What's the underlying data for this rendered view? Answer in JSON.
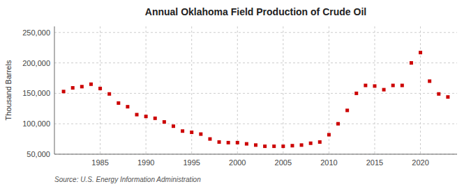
{
  "chart_data": {
    "type": "scatter",
    "title": "Annual Oklahoma Field Production of Crude Oil",
    "ylabel": "Thousand Barrels",
    "source": "Source: U.S. Energy Information Administration",
    "color": "#cc0000",
    "marker": "square",
    "grid": true,
    "x": [
      1981,
      1982,
      1983,
      1984,
      1985,
      1986,
      1987,
      1988,
      1989,
      1990,
      1991,
      1992,
      1993,
      1994,
      1995,
      1996,
      1997,
      1998,
      1999,
      2000,
      2001,
      2002,
      2003,
      2004,
      2005,
      2006,
      2007,
      2008,
      2009,
      2010,
      2011,
      2012,
      2013,
      2014,
      2015,
      2016,
      2017,
      2018,
      2019,
      2020,
      2021,
      2022,
      2023
    ],
    "values": [
      153000,
      159000,
      161000,
      165000,
      158000,
      149000,
      134000,
      128000,
      115000,
      112000,
      109000,
      103000,
      96000,
      88000,
      86000,
      83000,
      75000,
      70000,
      69000,
      69000,
      67000,
      65000,
      63000,
      63000,
      63000,
      64000,
      65000,
      68000,
      70000,
      82000,
      100000,
      122000,
      150000,
      163000,
      162000,
      156000,
      163000,
      163000,
      200000,
      217000,
      170000,
      149000,
      144000
    ],
    "xlim": [
      1980,
      2024
    ],
    "ylim": [
      50000,
      260000
    ],
    "xticks": [
      1985,
      1990,
      1995,
      2000,
      2005,
      2010,
      2015,
      2020
    ],
    "yticks": [
      {
        "value": 50000,
        "label": "50,000"
      },
      {
        "value": 100000,
        "label": "100,000"
      },
      {
        "value": 150000,
        "label": "150,000"
      },
      {
        "value": 200000,
        "label": "200,000"
      },
      {
        "value": 250000,
        "label": "250,000"
      }
    ]
  }
}
